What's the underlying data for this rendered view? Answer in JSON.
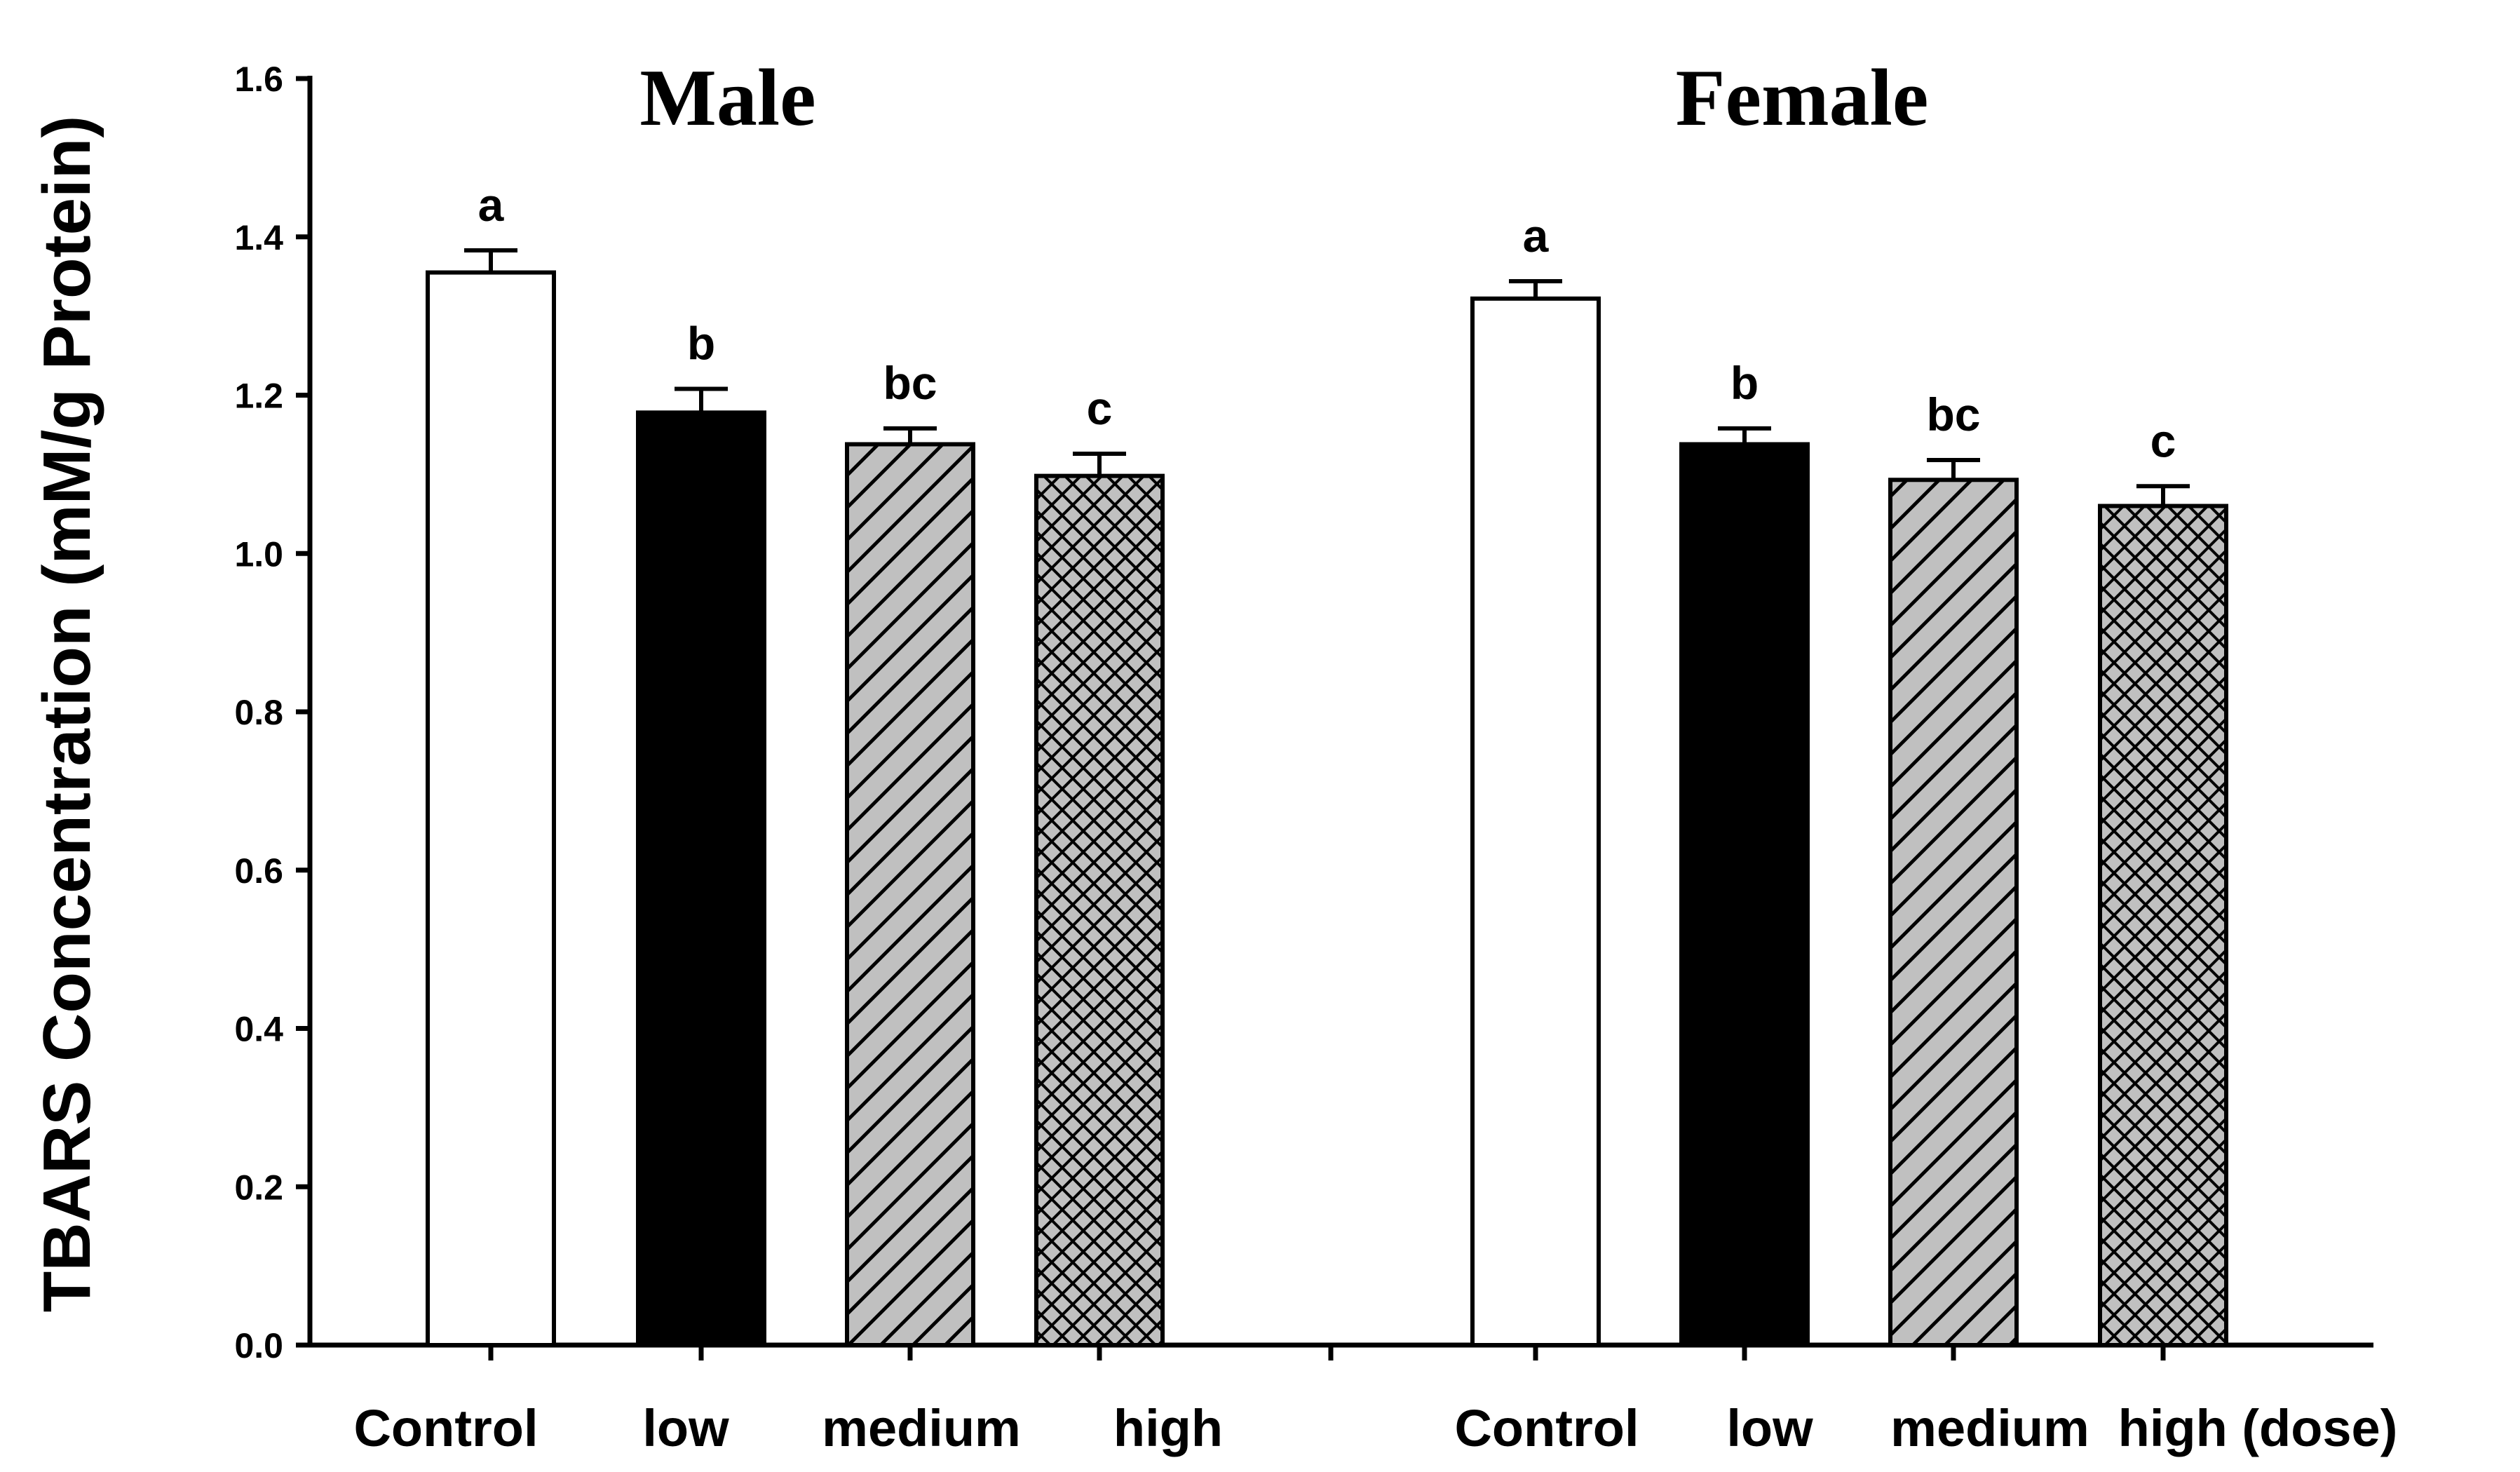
{
  "chart_data": {
    "type": "bar",
    "ylabel": "TBARS Concentration (mM/g Protein)",
    "xlabel": "",
    "ylim": [
      0,
      1.6
    ],
    "yticks": [
      "0.0",
      "0.2",
      "0.4",
      "0.6",
      "0.8",
      "1.0",
      "1.2",
      "1.4",
      "1.6"
    ],
    "groups": [
      {
        "title": "Male",
        "bars": [
          {
            "category": "Control",
            "value": 1.355,
            "error": 0.028,
            "letter": "a",
            "pattern": "white"
          },
          {
            "category": "low",
            "value": 1.178,
            "error": 0.03,
            "letter": "b",
            "pattern": "black"
          },
          {
            "category": "medium",
            "value": 1.138,
            "error": 0.02,
            "letter": "bc",
            "pattern": "diagonal"
          },
          {
            "category": "high",
            "value": 1.098,
            "error": 0.028,
            "letter": "c",
            "pattern": "crosshatch"
          }
        ]
      },
      {
        "title": "Female",
        "bars": [
          {
            "category": "Control",
            "value": 1.322,
            "error": 0.022,
            "letter": "a",
            "pattern": "white"
          },
          {
            "category": "low",
            "value": 1.138,
            "error": 0.02,
            "letter": "b",
            "pattern": "black"
          },
          {
            "category": "medium",
            "value": 1.093,
            "error": 0.025,
            "letter": "bc",
            "pattern": "diagonal"
          },
          {
            "category": "high",
            "value": 1.06,
            "error": 0.025,
            "letter": "c",
            "pattern": "crosshatch"
          }
        ]
      }
    ],
    "category_labels": [
      "Control",
      "low",
      "medium",
      "high",
      "Control",
      "low",
      "medium",
      "high (dose)"
    ],
    "colors": {
      "bar_outline": "#000000",
      "hatch_fill": "#c0c0c0",
      "solid": "#000000",
      "blank": "#ffffff"
    }
  }
}
